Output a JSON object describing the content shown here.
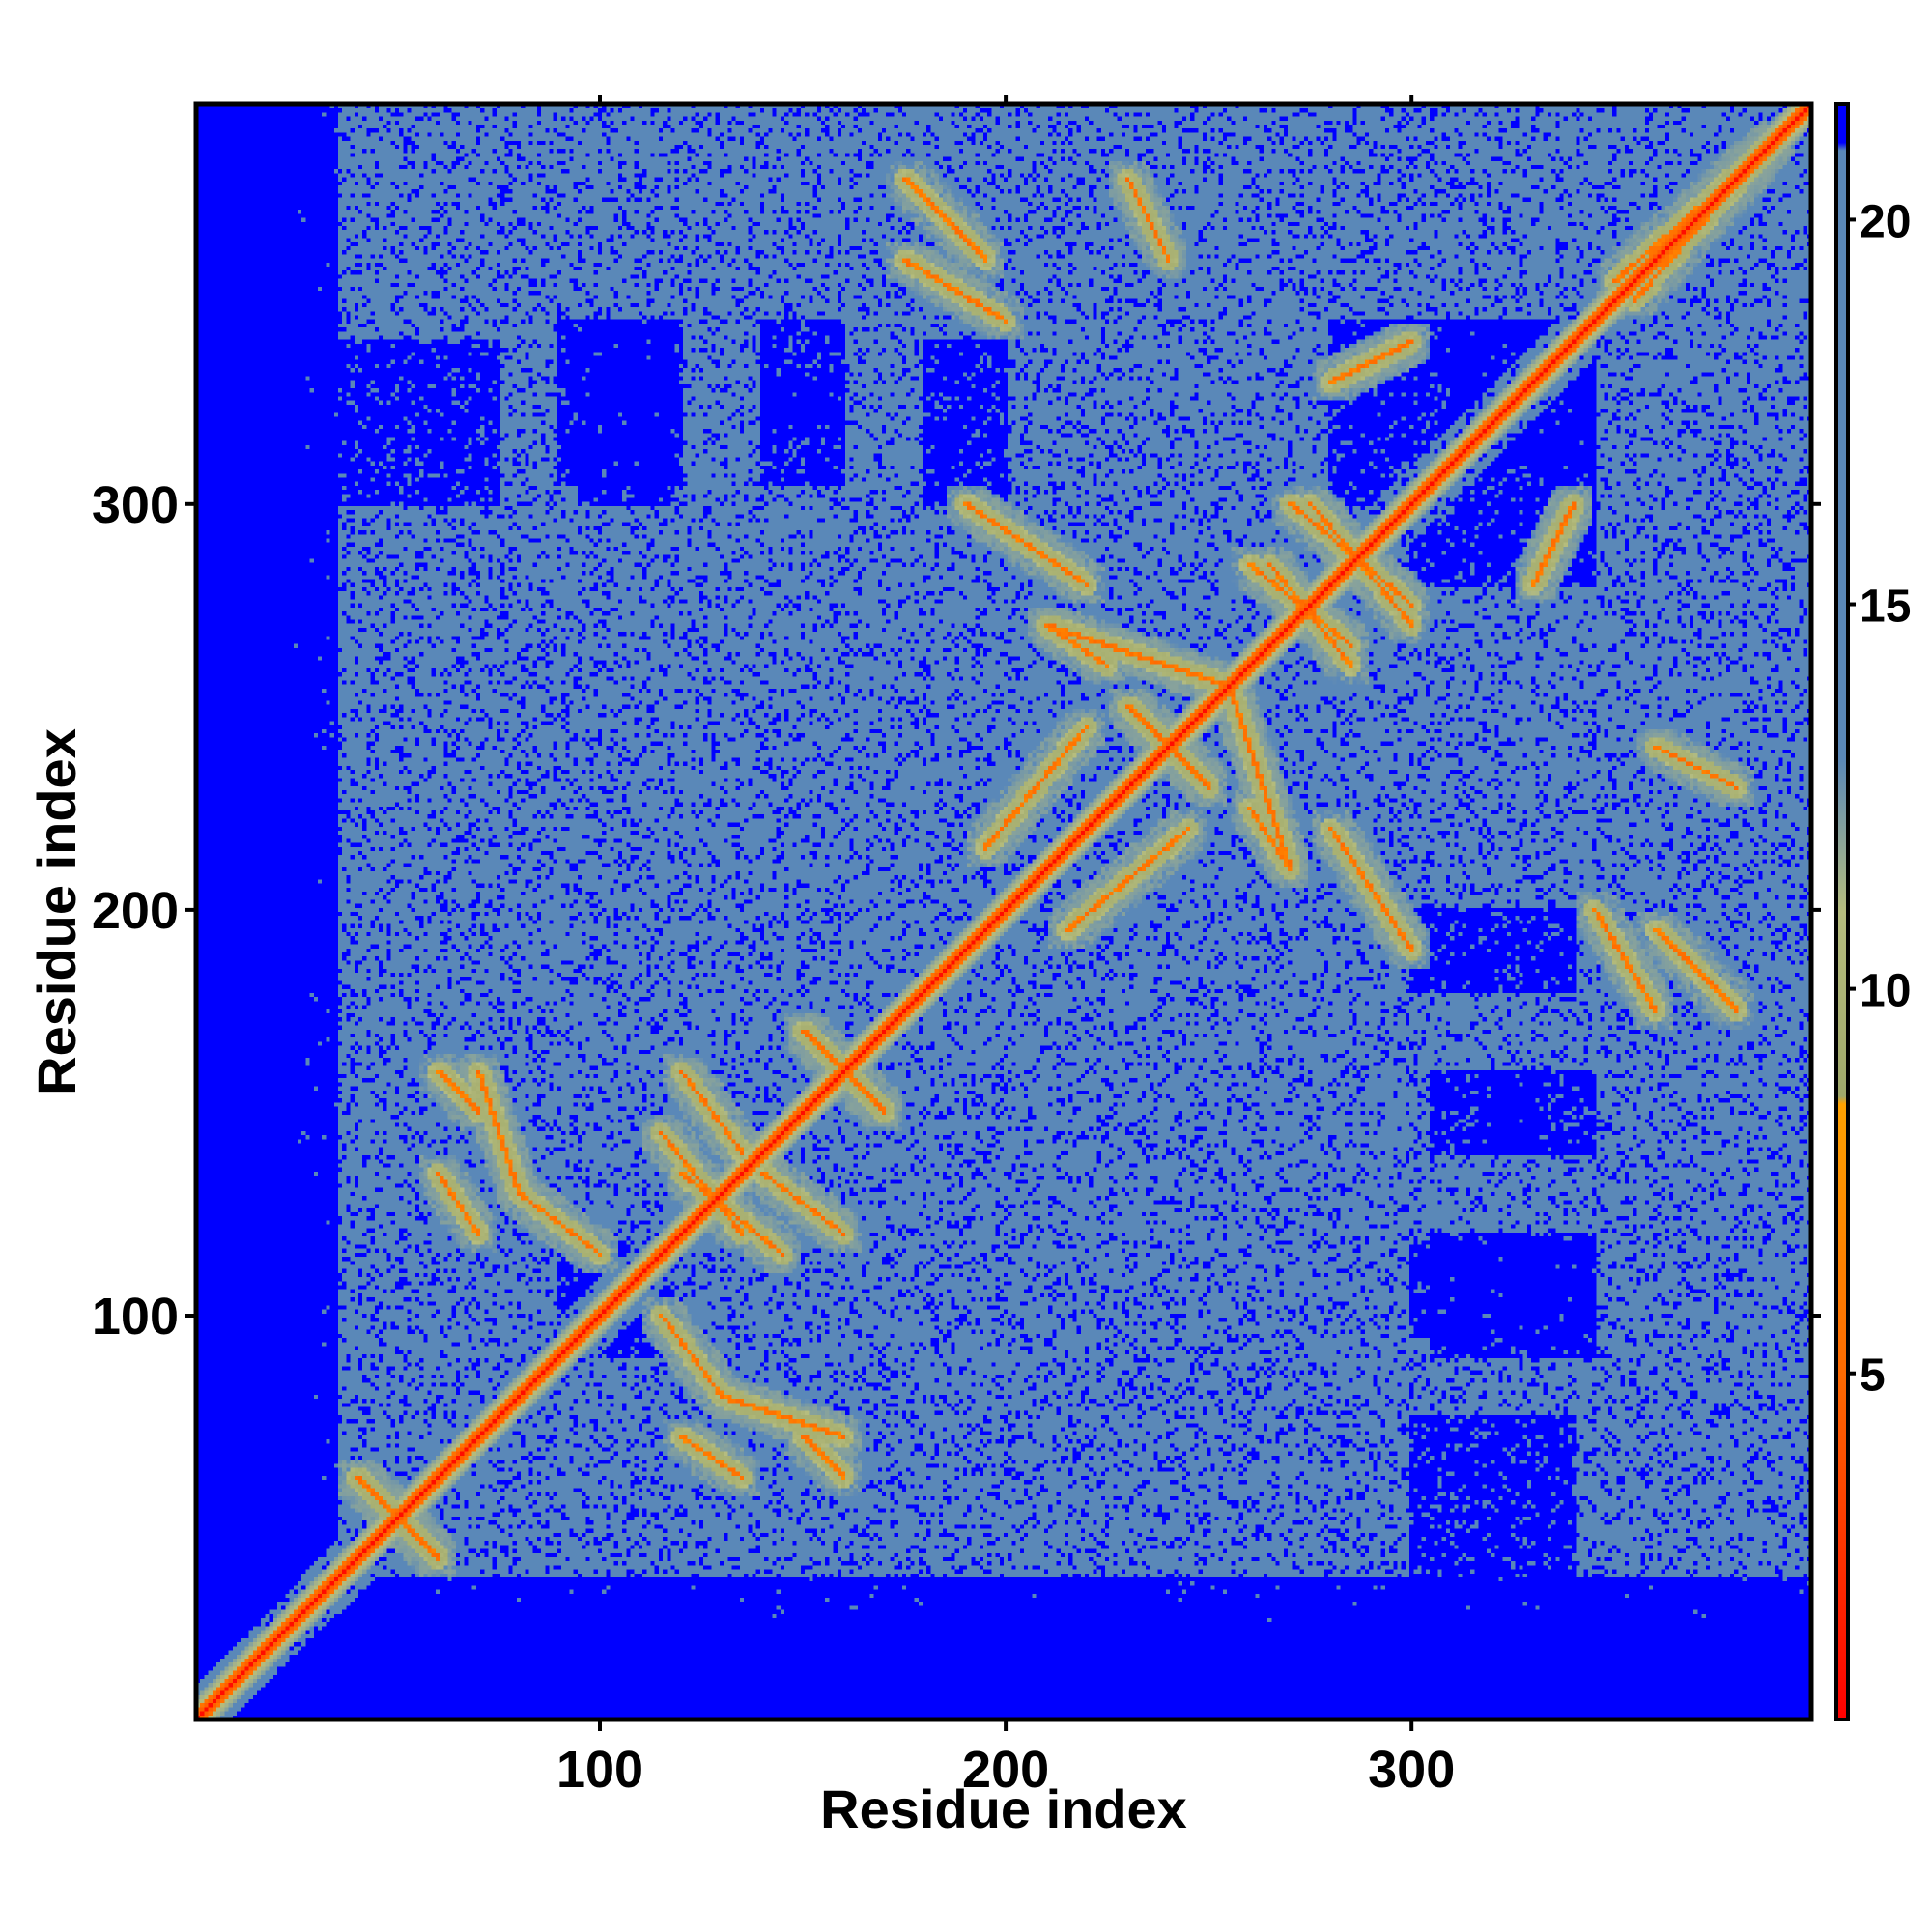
{
  "chart_data": {
    "type": "heatmap",
    "title": "",
    "xlabel": "Residue index",
    "ylabel": "Residue index",
    "xlim": [
      1,
      398
    ],
    "ylim": [
      1,
      398
    ],
    "x_ticks": [
      100,
      200,
      300
    ],
    "x_tick_labels": [
      "100",
      "200",
      "300"
    ],
    "y_ticks": [
      100,
      200,
      300
    ],
    "y_tick_labels": [
      "100",
      "200",
      "300"
    ],
    "colorbar": {
      "range": [
        0.5,
        21.5
      ],
      "ticks": [
        5,
        10,
        15,
        20
      ],
      "tick_labels": [
        "5",
        "10",
        "15",
        "20"
      ],
      "colors": [
        {
          "value": 0.5,
          "color": "#ff0000"
        },
        {
          "value": 5,
          "color": "#ff6a00"
        },
        {
          "value": 8.5,
          "color": "#ffa200"
        },
        {
          "value": 8.6,
          "color": "#9fa86a"
        },
        {
          "value": 11,
          "color": "#b6bd7e"
        },
        {
          "value": 13,
          "color": "#5a88b8"
        },
        {
          "value": 20.9,
          "color": "#5a88b8"
        },
        {
          "value": 21,
          "color": "#0000ff"
        },
        {
          "value": 21.5,
          "color": "#0000ff"
        }
      ]
    },
    "description": "Symmetric residue-residue distance map (values in colorbar units); red diagonal, blue regions = distances beyond cutoff",
    "structure": {
      "n_residues": 398,
      "diagonal_value": 1,
      "far_value": 21,
      "background_value": 17,
      "terminal_unstructured_low": 28,
      "terminal_unstructured_high": 358,
      "contact_paths": [
        {
          "from": [
            40,
            60
          ],
          "to": [
            60,
            40
          ]
        },
        {
          "from": [
            120,
            70
          ],
          "to": [
            135,
            60
          ]
        },
        {
          "from": [
            150,
            70
          ],
          "to": [
            160,
            60
          ]
        },
        {
          "from": [
            70,
            160
          ],
          "to": [
            80,
            130
          ]
        },
        {
          "from": [
            80,
            130
          ],
          "to": [
            100,
            115
          ]
        },
        {
          "from": [
            115,
            145
          ],
          "to": [
            135,
            120
          ]
        },
        {
          "from": [
            140,
            135
          ],
          "to": [
            160,
            120
          ]
        },
        {
          "from": [
            150,
            170
          ],
          "to": [
            170,
            150
          ]
        },
        {
          "from": [
            210,
            270
          ],
          "to": [
            225,
            260
          ]
        },
        {
          "from": [
            230,
            250
          ],
          "to": [
            250,
            230
          ]
        },
        {
          "from": [
            255,
            255
          ],
          "to": [
            270,
            210
          ]
        },
        {
          "from": [
            215,
            195
          ],
          "to": [
            245,
            220
          ]
        },
        {
          "from": [
            265,
            285
          ],
          "to": [
            285,
            260
          ]
        },
        {
          "from": [
            270,
            300
          ],
          "to": [
            300,
            275
          ]
        },
        {
          "from": [
            280,
            220
          ],
          "to": [
            300,
            190
          ]
        },
        {
          "from": [
            345,
            200
          ],
          "to": [
            360,
            175
          ]
        },
        {
          "from": [
            355,
            350
          ],
          "to": [
            390,
            390
          ]
        },
        {
          "from": [
            175,
            380
          ],
          "to": [
            195,
            360
          ]
        },
        {
          "from": [
            230,
            380
          ],
          "to": [
            240,
            360
          ]
        },
        {
          "from": [
            330,
            280
          ],
          "to": [
            340,
            300
          ]
        }
      ],
      "far_blocks": [
        {
          "x": [
            1,
            35
          ],
          "y": [
            1,
            398
          ]
        },
        {
          "x": [
            1,
            398
          ],
          "y": [
            1,
            35
          ]
        },
        {
          "x": [
            95,
            118
          ],
          "y": [
            90,
            110
          ]
        },
        {
          "x": [
            95,
            118
          ],
          "y": [
            300,
            345
          ]
        },
        {
          "x": [
            305,
            345
          ],
          "y": [
            90,
            120
          ]
        },
        {
          "x": [
            305,
            330
          ],
          "y": [
            140,
            160
          ]
        },
        {
          "x": [
            310,
            345
          ],
          "y": [
            300,
            345
          ]
        },
        {
          "x": [
            280,
            300
          ],
          "y": [
            300,
            345
          ]
        },
        {
          "x": [
            30,
            75
          ],
          "y": [
            300,
            340
          ]
        },
        {
          "x": [
            180,
            200
          ],
          "y": [
            300,
            340
          ]
        },
        {
          "x": [
            140,
            160
          ],
          "y": [
            320,
            345
          ]
        }
      ]
    }
  }
}
